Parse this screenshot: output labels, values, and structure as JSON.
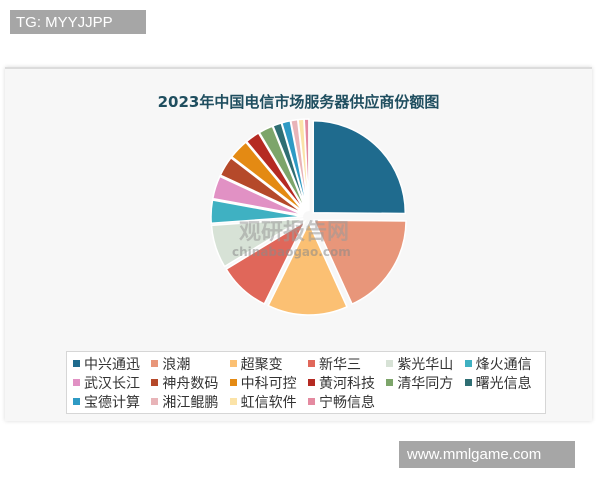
{
  "overlay": {
    "top_left_tag": "TG: MYYJJPP",
    "bottom_right_tag": "www.mmlgame.com"
  },
  "watermark": {
    "cn": "观研报告网",
    "url": "chinabaogao.com"
  },
  "chart_data": {
    "type": "pie",
    "title": "2023年中国电信市场服务器供应商份额图",
    "unit": "%",
    "legend_position": "bottom",
    "exploded": true,
    "categories": [
      "中兴通迅",
      "浪潮",
      "超聚变",
      "新华三",
      "紫光华山",
      "烽火通信",
      "武汉长江",
      "神舟数码",
      "中科可控",
      "黄河科技",
      "清华同方",
      "曙光信息",
      "宝德计算",
      "湘江鲲鹏",
      "虹信软件",
      "宁畅信息"
    ],
    "values": [
      25,
      18,
      14,
      9,
      7.5,
      4,
      4,
      3.5,
      3.5,
      2.5,
      2.5,
      1.5,
      1.5,
      1.2,
      1.0,
      0.8
    ],
    "colors": [
      "#1f6b8e",
      "#e8967a",
      "#fbc073",
      "#e0675a",
      "#d7e2d6",
      "#3fb1c2",
      "#e191c4",
      "#b5492a",
      "#e48a13",
      "#b52a22",
      "#7da56a",
      "#2f6e73",
      "#2e9ac4",
      "#e8b4b8",
      "#fbe3a8",
      "#e48aa0"
    ]
  }
}
